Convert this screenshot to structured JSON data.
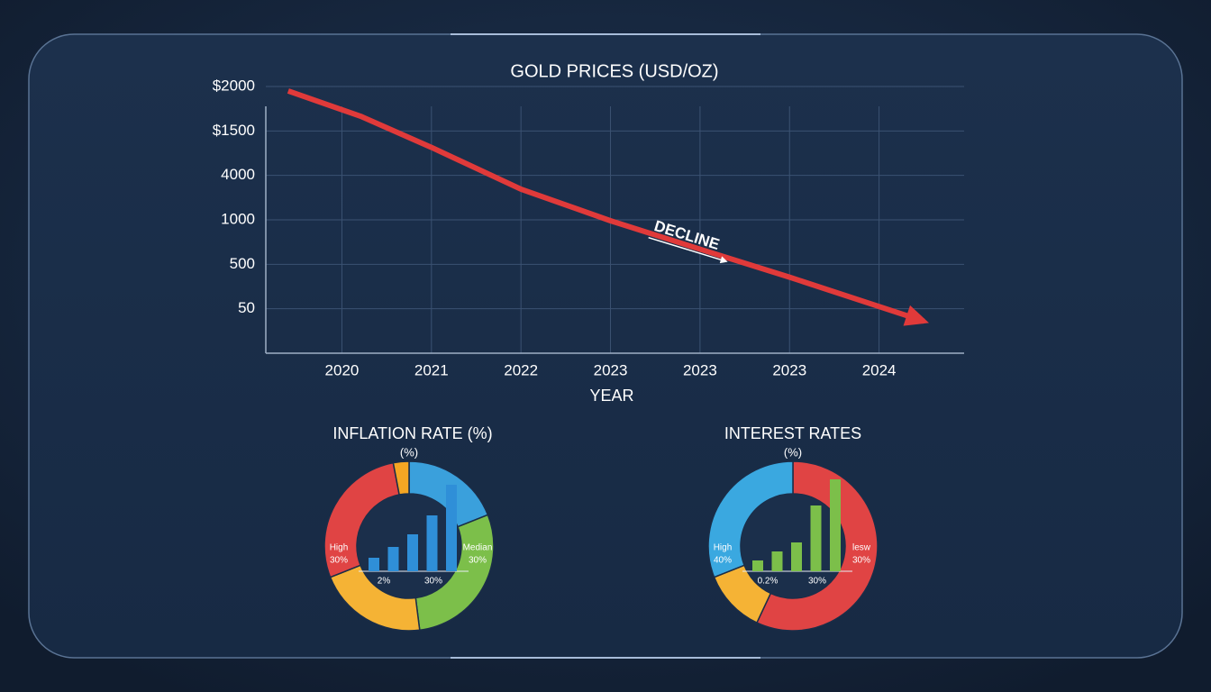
{
  "chart_data": [
    {
      "type": "line",
      "title": "GOLD PRICES (USD/OZ)",
      "xlabel": "YEAR",
      "color": "#e03a3a",
      "grid": true,
      "xlim": [
        -0.85,
        6.95
      ],
      "xticks": [
        {
          "value": 0,
          "label": "2020"
        },
        {
          "value": 1,
          "label": "2021"
        },
        {
          "value": 2,
          "label": "2022"
        },
        {
          "value": 3,
          "label": "2023"
        },
        {
          "value": 4,
          "label": "2023"
        },
        {
          "value": 5,
          "label": "2023"
        },
        {
          "value": 6,
          "label": "2024"
        }
      ],
      "ylim": [
        -1,
        5
      ],
      "yticks": [
        {
          "value": 5,
          "label": "$2000"
        },
        {
          "value": 4,
          "label": "$1500"
        },
        {
          "value": 3,
          "label": "4000"
        },
        {
          "value": 2,
          "label": "1000"
        },
        {
          "value": 1,
          "label": "500"
        },
        {
          "value": 0,
          "label": "50"
        }
      ],
      "x": [
        -0.6,
        0.21,
        1,
        2,
        3,
        4,
        5,
        6.5
      ],
      "values": [
        4.9,
        4.33,
        3.63,
        2.69,
        1.98,
        1.34,
        0.71,
        -0.28
      ],
      "annotation": "DECLINE"
    },
    {
      "type": "donut",
      "title": "INFLATION RATE (%)",
      "subtitle": "(%)",
      "values": [
        19,
        29,
        21,
        28,
        3
      ],
      "colors": [
        "#3aa0dc",
        "#7cbf4a",
        "#f5b335",
        "#e04444",
        "#f5a623"
      ],
      "left_label": [
        "High",
        "30%"
      ],
      "right_label": [
        "Median",
        "30%"
      ],
      "inset_bars": {
        "color": "#2f8fd8",
        "values": [
          15,
          27,
          41,
          62,
          96
        ]
      },
      "inset_labels": [
        "2%",
        "30%"
      ]
    },
    {
      "type": "donut",
      "title": "INTEREST RATES",
      "subtitle": "(%)",
      "values": [
        57,
        12,
        31
      ],
      "colors": [
        "#e04444",
        "#f5b335",
        "#3aa8e0"
      ],
      "left_label": [
        "High",
        "40%"
      ],
      "right_label": [
        "lesw",
        "30%"
      ],
      "inset_bars": {
        "color": "#7cbf4a",
        "values": [
          12,
          22,
          32,
          73,
          102
        ]
      },
      "inset_labels": [
        "0.2%",
        "30%"
      ]
    }
  ]
}
